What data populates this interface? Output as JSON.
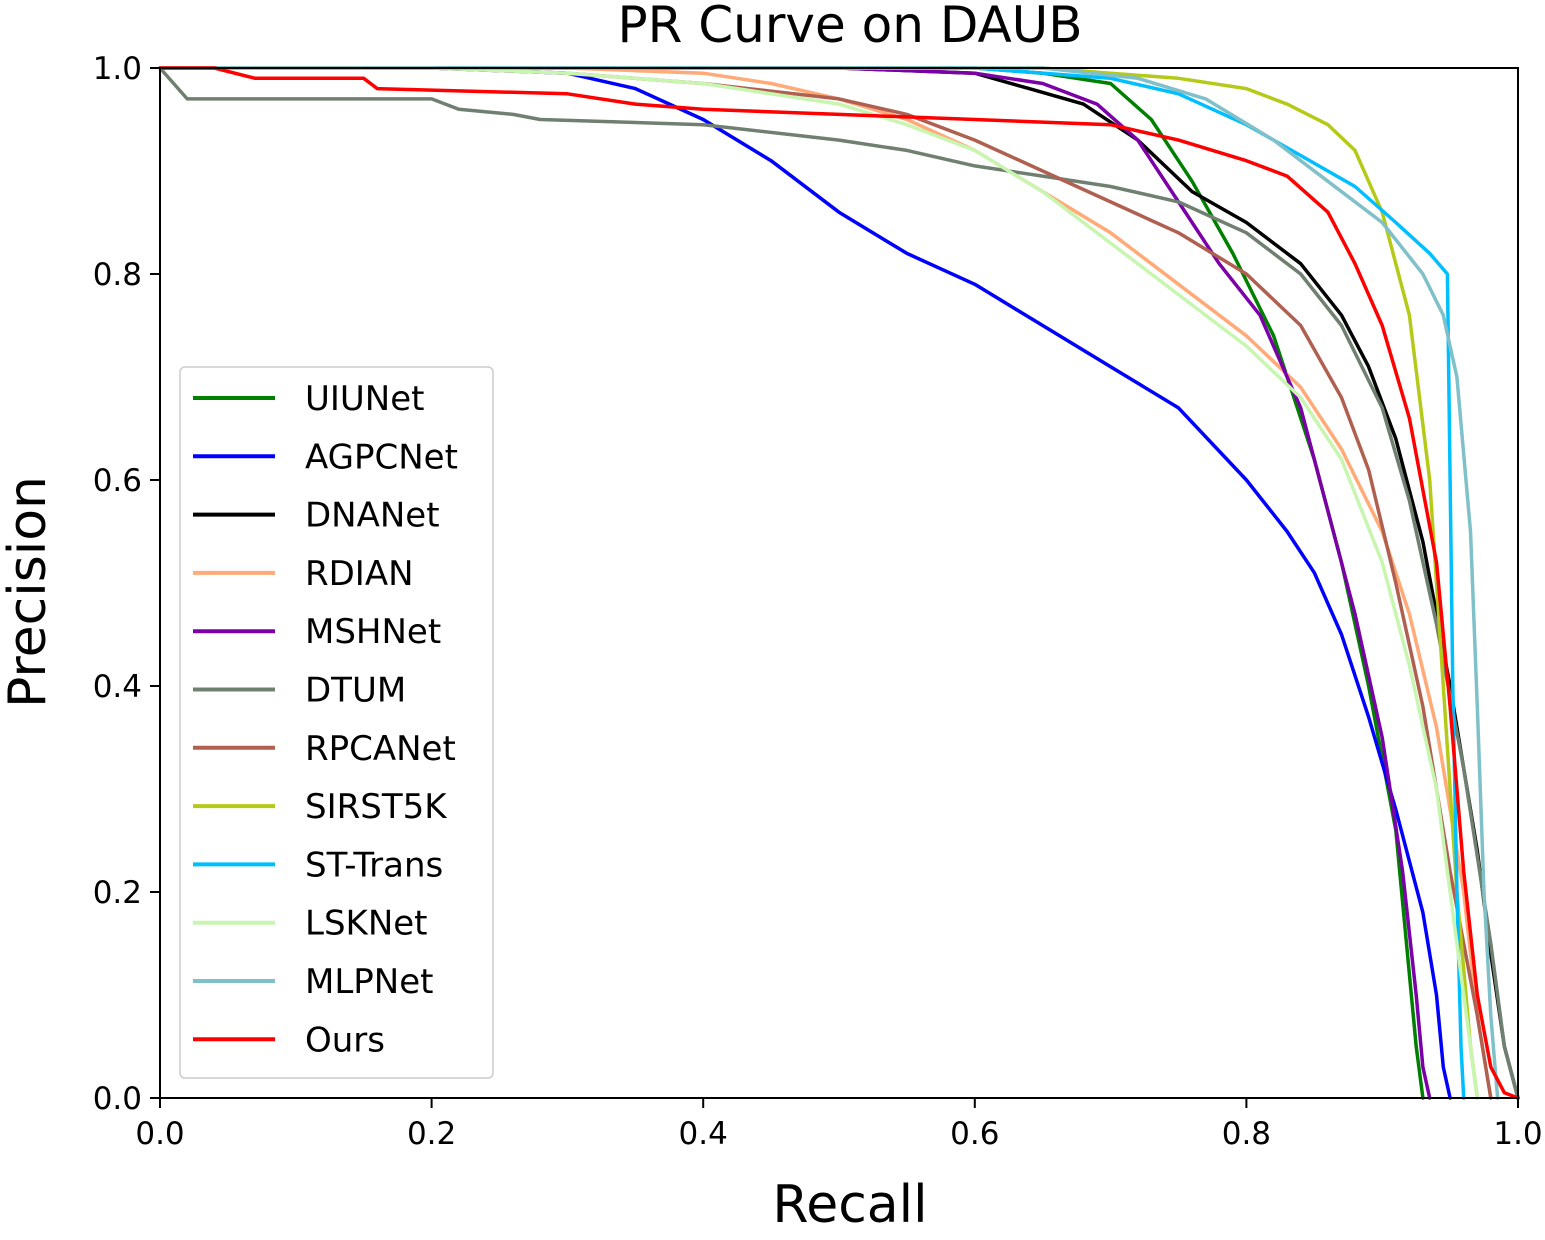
{
  "chart_data": {
    "type": "line",
    "title": "PR Curve on DAUB",
    "xlabel": "Recall",
    "ylabel": "Precision",
    "xlim": [
      0.0,
      1.0
    ],
    "ylim": [
      0.0,
      1.0
    ],
    "xticks": [
      "0.0",
      "0.2",
      "0.4",
      "0.6",
      "0.8",
      "1.0"
    ],
    "yticks": [
      "0.0",
      "0.2",
      "0.4",
      "0.6",
      "0.8",
      "1.0"
    ],
    "grid": false,
    "legend_position": "center-left",
    "series": [
      {
        "name": "UIUNet",
        "color": "#008000",
        "points": [
          [
            0,
            1.0
          ],
          [
            0.3,
            1.0
          ],
          [
            0.5,
            1.0
          ],
          [
            0.6,
            1.0
          ],
          [
            0.65,
            0.995
          ],
          [
            0.7,
            0.985
          ],
          [
            0.73,
            0.95
          ],
          [
            0.76,
            0.89
          ],
          [
            0.79,
            0.82
          ],
          [
            0.82,
            0.74
          ],
          [
            0.85,
            0.62
          ],
          [
            0.87,
            0.52
          ],
          [
            0.89,
            0.4
          ],
          [
            0.91,
            0.26
          ],
          [
            0.92,
            0.12
          ],
          [
            0.925,
            0.05
          ],
          [
            0.93,
            0.0
          ]
        ]
      },
      {
        "name": "AGPCNet",
        "color": "#0000ff",
        "points": [
          [
            0,
            1.0
          ],
          [
            0.2,
            1.0
          ],
          [
            0.3,
            0.995
          ],
          [
            0.35,
            0.98
          ],
          [
            0.4,
            0.95
          ],
          [
            0.45,
            0.91
          ],
          [
            0.5,
            0.86
          ],
          [
            0.55,
            0.82
          ],
          [
            0.6,
            0.79
          ],
          [
            0.65,
            0.75
          ],
          [
            0.7,
            0.71
          ],
          [
            0.75,
            0.67
          ],
          [
            0.8,
            0.6
          ],
          [
            0.83,
            0.55
          ],
          [
            0.85,
            0.51
          ],
          [
            0.87,
            0.45
          ],
          [
            0.89,
            0.37
          ],
          [
            0.91,
            0.28
          ],
          [
            0.93,
            0.18
          ],
          [
            0.94,
            0.1
          ],
          [
            0.945,
            0.03
          ],
          [
            0.95,
            0.0
          ]
        ]
      },
      {
        "name": "DNANet",
        "color": "#000000",
        "points": [
          [
            0,
            1.0
          ],
          [
            0.5,
            1.0
          ],
          [
            0.6,
            0.995
          ],
          [
            0.64,
            0.98
          ],
          [
            0.68,
            0.965
          ],
          [
            0.72,
            0.93
          ],
          [
            0.76,
            0.88
          ],
          [
            0.8,
            0.85
          ],
          [
            0.84,
            0.81
          ],
          [
            0.87,
            0.76
          ],
          [
            0.89,
            0.71
          ],
          [
            0.91,
            0.64
          ],
          [
            0.93,
            0.54
          ],
          [
            0.95,
            0.4
          ],
          [
            0.97,
            0.24
          ],
          [
            0.98,
            0.14
          ],
          [
            0.99,
            0.05
          ],
          [
            1.0,
            0.0
          ]
        ]
      },
      {
        "name": "RDIAN",
        "color": "#ffaa77",
        "points": [
          [
            0,
            1.0
          ],
          [
            0.3,
            1.0
          ],
          [
            0.4,
            0.995
          ],
          [
            0.45,
            0.985
          ],
          [
            0.5,
            0.97
          ],
          [
            0.55,
            0.95
          ],
          [
            0.6,
            0.92
          ],
          [
            0.65,
            0.88
          ],
          [
            0.7,
            0.84
          ],
          [
            0.75,
            0.79
          ],
          [
            0.8,
            0.74
          ],
          [
            0.84,
            0.69
          ],
          [
            0.87,
            0.63
          ],
          [
            0.9,
            0.55
          ],
          [
            0.92,
            0.47
          ],
          [
            0.94,
            0.36
          ],
          [
            0.96,
            0.2
          ],
          [
            0.97,
            0.08
          ],
          [
            0.98,
            0.0
          ]
        ]
      },
      {
        "name": "MSHNet",
        "color": "#7b00a8",
        "points": [
          [
            0,
            1.0
          ],
          [
            0.5,
            1.0
          ],
          [
            0.6,
            0.995
          ],
          [
            0.65,
            0.985
          ],
          [
            0.69,
            0.965
          ],
          [
            0.72,
            0.93
          ],
          [
            0.75,
            0.87
          ],
          [
            0.78,
            0.81
          ],
          [
            0.81,
            0.76
          ],
          [
            0.84,
            0.67
          ],
          [
            0.86,
            0.57
          ],
          [
            0.88,
            0.47
          ],
          [
            0.9,
            0.35
          ],
          [
            0.915,
            0.22
          ],
          [
            0.925,
            0.1
          ],
          [
            0.93,
            0.03
          ],
          [
            0.935,
            0.0
          ]
        ]
      },
      {
        "name": "DTUM",
        "color": "#708070",
        "points": [
          [
            0,
            1.0
          ],
          [
            0.02,
            0.97
          ],
          [
            0.1,
            0.97
          ],
          [
            0.2,
            0.97
          ],
          [
            0.22,
            0.96
          ],
          [
            0.26,
            0.955
          ],
          [
            0.28,
            0.95
          ],
          [
            0.4,
            0.945
          ],
          [
            0.5,
            0.93
          ],
          [
            0.55,
            0.92
          ],
          [
            0.6,
            0.905
          ],
          [
            0.65,
            0.895
          ],
          [
            0.7,
            0.885
          ],
          [
            0.75,
            0.87
          ],
          [
            0.8,
            0.84
          ],
          [
            0.84,
            0.8
          ],
          [
            0.87,
            0.75
          ],
          [
            0.9,
            0.67
          ],
          [
            0.92,
            0.58
          ],
          [
            0.94,
            0.46
          ],
          [
            0.96,
            0.32
          ],
          [
            0.98,
            0.15
          ],
          [
            0.99,
            0.05
          ],
          [
            1.0,
            0.0
          ]
        ]
      },
      {
        "name": "RPCANet",
        "color": "#b06050",
        "points": [
          [
            0,
            1.0
          ],
          [
            0.2,
            1.0
          ],
          [
            0.3,
            0.995
          ],
          [
            0.4,
            0.985
          ],
          [
            0.5,
            0.97
          ],
          [
            0.55,
            0.955
          ],
          [
            0.6,
            0.93
          ],
          [
            0.65,
            0.9
          ],
          [
            0.7,
            0.87
          ],
          [
            0.75,
            0.84
          ],
          [
            0.8,
            0.8
          ],
          [
            0.84,
            0.75
          ],
          [
            0.87,
            0.68
          ],
          [
            0.89,
            0.61
          ],
          [
            0.91,
            0.5
          ],
          [
            0.93,
            0.38
          ],
          [
            0.95,
            0.22
          ],
          [
            0.97,
            0.08
          ],
          [
            0.98,
            0.0
          ]
        ]
      },
      {
        "name": "SIRST5K",
        "color": "#b5c918",
        "points": [
          [
            0,
            1.0
          ],
          [
            0.5,
            1.0
          ],
          [
            0.65,
            1.0
          ],
          [
            0.7,
            0.995
          ],
          [
            0.75,
            0.99
          ],
          [
            0.8,
            0.98
          ],
          [
            0.83,
            0.965
          ],
          [
            0.86,
            0.945
          ],
          [
            0.88,
            0.92
          ],
          [
            0.9,
            0.86
          ],
          [
            0.92,
            0.76
          ],
          [
            0.935,
            0.6
          ],
          [
            0.945,
            0.4
          ],
          [
            0.955,
            0.2
          ],
          [
            0.965,
            0.05
          ],
          [
            0.97,
            0.0
          ]
        ]
      },
      {
        "name": "ST-Trans",
        "color": "#00bfff",
        "points": [
          [
            0,
            1.0
          ],
          [
            0.4,
            1.0
          ],
          [
            0.6,
            1.0
          ],
          [
            0.7,
            0.99
          ],
          [
            0.75,
            0.975
          ],
          [
            0.8,
            0.945
          ],
          [
            0.84,
            0.915
          ],
          [
            0.88,
            0.885
          ],
          [
            0.91,
            0.85
          ],
          [
            0.935,
            0.82
          ],
          [
            0.948,
            0.8
          ],
          [
            0.95,
            0.6
          ],
          [
            0.952,
            0.4
          ],
          [
            0.955,
            0.2
          ],
          [
            0.958,
            0.05
          ],
          [
            0.96,
            0.0
          ]
        ]
      },
      {
        "name": "LSKNet",
        "color": "#c8f5b0",
        "points": [
          [
            0,
            1.0
          ],
          [
            0.2,
            1.0
          ],
          [
            0.3,
            0.995
          ],
          [
            0.4,
            0.985
          ],
          [
            0.5,
            0.965
          ],
          [
            0.55,
            0.945
          ],
          [
            0.6,
            0.92
          ],
          [
            0.65,
            0.88
          ],
          [
            0.7,
            0.83
          ],
          [
            0.75,
            0.78
          ],
          [
            0.8,
            0.73
          ],
          [
            0.84,
            0.68
          ],
          [
            0.87,
            0.62
          ],
          [
            0.9,
            0.52
          ],
          [
            0.92,
            0.42
          ],
          [
            0.94,
            0.3
          ],
          [
            0.95,
            0.2
          ],
          [
            0.96,
            0.1
          ],
          [
            0.97,
            0.0
          ]
        ]
      },
      {
        "name": "MLPNet",
        "color": "#80c0c8",
        "points": [
          [
            0,
            1.0
          ],
          [
            0.5,
            1.0
          ],
          [
            0.65,
            1.0
          ],
          [
            0.72,
            0.99
          ],
          [
            0.77,
            0.97
          ],
          [
            0.82,
            0.93
          ],
          [
            0.86,
            0.89
          ],
          [
            0.9,
            0.85
          ],
          [
            0.93,
            0.8
          ],
          [
            0.945,
            0.76
          ],
          [
            0.955,
            0.7
          ],
          [
            0.965,
            0.55
          ],
          [
            0.97,
            0.38
          ],
          [
            0.975,
            0.2
          ],
          [
            0.98,
            0.08
          ],
          [
            0.985,
            0.0
          ]
        ]
      },
      {
        "name": "Ours",
        "color": "#ff0000",
        "points": [
          [
            0,
            1.0
          ],
          [
            0.04,
            1.0
          ],
          [
            0.07,
            0.99
          ],
          [
            0.15,
            0.99
          ],
          [
            0.16,
            0.98
          ],
          [
            0.3,
            0.975
          ],
          [
            0.35,
            0.965
          ],
          [
            0.4,
            0.96
          ],
          [
            0.5,
            0.955
          ],
          [
            0.6,
            0.95
          ],
          [
            0.7,
            0.945
          ],
          [
            0.75,
            0.93
          ],
          [
            0.8,
            0.91
          ],
          [
            0.83,
            0.895
          ],
          [
            0.86,
            0.86
          ],
          [
            0.88,
            0.81
          ],
          [
            0.9,
            0.75
          ],
          [
            0.92,
            0.66
          ],
          [
            0.94,
            0.52
          ],
          [
            0.95,
            0.38
          ],
          [
            0.96,
            0.22
          ],
          [
            0.97,
            0.1
          ],
          [
            0.98,
            0.03
          ],
          [
            0.99,
            0.005
          ],
          [
            1.0,
            0.0
          ]
        ]
      }
    ]
  }
}
